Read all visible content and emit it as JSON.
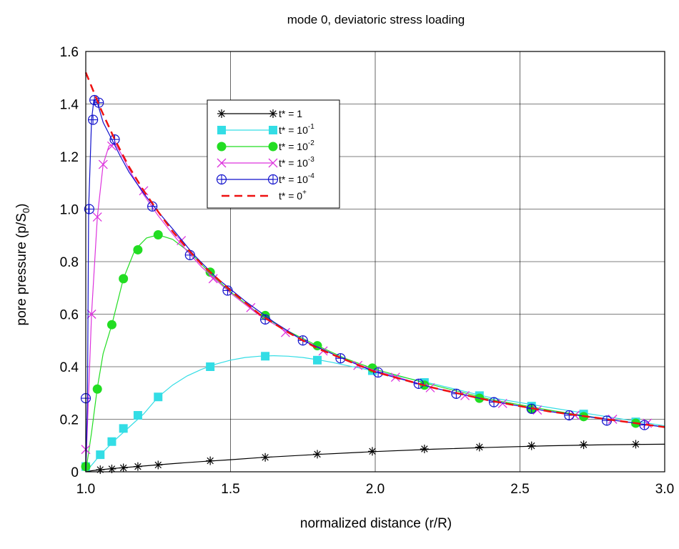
{
  "chart_data": {
    "type": "line",
    "title": "mode 0, deviatoric stress loading",
    "xlabel": "normalized distance (r/R)",
    "ylabel_main": "pore pressure (p/S",
    "ylabel_sub": "0",
    "ylabel_close": ")",
    "xlim": [
      1.0,
      3.0
    ],
    "ylim": [
      0,
      1.6
    ],
    "xticks": [
      {
        "value": 1.0,
        "label": "1.0"
      },
      {
        "value": 1.5,
        "label": "1.5"
      },
      {
        "value": 2.0,
        "label": "2.0"
      },
      {
        "value": 2.5,
        "label": "2.5"
      },
      {
        "value": 3.0,
        "label": "3.0"
      }
    ],
    "yticks": [
      {
        "value": 0,
        "label": "0"
      },
      {
        "value": 0.2,
        "label": "0.2"
      },
      {
        "value": 0.4,
        "label": "0.4"
      },
      {
        "value": 0.6,
        "label": "0.6"
      },
      {
        "value": 0.8,
        "label": "0.8"
      },
      {
        "value": 1.0,
        "label": "1.0"
      },
      {
        "value": 1.2,
        "label": "1.2"
      },
      {
        "value": 1.4,
        "label": "1.4"
      },
      {
        "value": 1.6,
        "label": "1.6"
      }
    ],
    "grid": true,
    "legend_position": "top-left",
    "series": [
      {
        "name": "t* = 1",
        "legend_base": "t* = 1",
        "legend_sup": "",
        "color": "#000000",
        "marker": "asterisk",
        "dashed": false,
        "curve": {
          "x": [
            1.0,
            1.02,
            1.05,
            1.1,
            1.2,
            1.3,
            1.4,
            1.5,
            1.6,
            1.8,
            2.0,
            2.2,
            2.4,
            2.6,
            2.8,
            3.0
          ],
          "y": [
            0.0,
            0.004,
            0.008,
            0.013,
            0.022,
            0.031,
            0.039,
            0.046,
            0.054,
            0.066,
            0.077,
            0.086,
            0.093,
            0.099,
            0.103,
            0.105
          ]
        },
        "markers": {
          "x": [
            1.05,
            1.09,
            1.13,
            1.18,
            1.25,
            1.43,
            1.62,
            1.8,
            1.99,
            2.17,
            2.36,
            2.54,
            2.72,
            2.9
          ],
          "y": [
            0.008,
            0.011,
            0.015,
            0.02,
            0.026,
            0.042,
            0.055,
            0.067,
            0.078,
            0.087,
            0.094,
            0.099,
            0.103,
            0.105
          ]
        }
      },
      {
        "name": "t* = 10^-1",
        "legend_base": "t* = 10",
        "legend_sup": "-1",
        "color": "#33dde5",
        "marker": "square",
        "dashed": false,
        "curve": {
          "x": [
            1.0,
            1.02,
            1.05,
            1.1,
            1.15,
            1.2,
            1.25,
            1.3,
            1.35,
            1.4,
            1.45,
            1.5,
            1.55,
            1.6,
            1.65,
            1.7,
            1.75,
            1.8,
            1.85,
            1.9,
            1.95,
            2.0,
            2.2,
            2.4,
            2.6,
            2.8,
            3.0
          ],
          "y": [
            0.0,
            0.025,
            0.065,
            0.12,
            0.17,
            0.22,
            0.285,
            0.33,
            0.365,
            0.39,
            0.41,
            0.425,
            0.435,
            0.44,
            0.442,
            0.44,
            0.435,
            0.427,
            0.417,
            0.405,
            0.394,
            0.383,
            0.335,
            0.282,
            0.245,
            0.21,
            0.175
          ]
        },
        "markers": {
          "x": [
            1.0,
            1.05,
            1.09,
            1.13,
            1.18,
            1.25,
            1.43,
            1.62,
            1.8,
            1.99,
            2.17,
            2.36,
            2.54,
            2.72,
            2.9
          ],
          "y": [
            0.02,
            0.065,
            0.115,
            0.165,
            0.215,
            0.285,
            0.4,
            0.44,
            0.425,
            0.385,
            0.34,
            0.29,
            0.25,
            0.22,
            0.19
          ]
        }
      },
      {
        "name": "t* = 10^-2",
        "legend_base": "t* = 10",
        "legend_sup": "-2",
        "color": "#22dd22",
        "marker": "circle",
        "dashed": false,
        "curve": {
          "x": [
            1.0,
            1.02,
            1.04,
            1.06,
            1.09,
            1.13,
            1.17,
            1.21,
            1.25,
            1.3,
            1.36,
            1.43,
            1.5,
            1.6,
            1.7,
            1.8,
            1.9,
            2.0,
            2.2,
            2.4,
            2.6,
            2.8,
            3.0
          ],
          "y": [
            0.0,
            0.15,
            0.32,
            0.45,
            0.56,
            0.735,
            0.845,
            0.89,
            0.902,
            0.885,
            0.835,
            0.755,
            0.685,
            0.6,
            0.535,
            0.48,
            0.43,
            0.39,
            0.33,
            0.275,
            0.235,
            0.2,
            0.17
          ]
        },
        "markers": {
          "x": [
            1.0,
            1.04,
            1.09,
            1.13,
            1.18,
            1.25,
            1.43,
            1.62,
            1.8,
            1.99,
            2.17,
            2.36,
            2.54,
            2.72,
            2.9
          ],
          "y": [
            0.02,
            0.315,
            0.56,
            0.735,
            0.845,
            0.902,
            0.76,
            0.595,
            0.48,
            0.395,
            0.33,
            0.28,
            0.24,
            0.21,
            0.185
          ]
        }
      },
      {
        "name": "t* = 10^-3",
        "legend_base": "t* = 10",
        "legend_sup": "-3",
        "color": "#dd33dd",
        "marker": "x",
        "dashed": false,
        "curve": {
          "x": [
            1.0,
            1.01,
            1.02,
            1.04,
            1.06,
            1.08,
            1.1,
            1.12,
            1.16,
            1.2,
            1.25,
            1.3,
            1.35,
            1.4,
            1.5,
            1.6,
            1.7,
            1.8,
            1.9,
            2.0,
            2.2,
            2.4,
            2.6,
            2.8,
            3.0
          ],
          "y": [
            0.0,
            0.3,
            0.6,
            0.97,
            1.17,
            1.24,
            1.25,
            1.215,
            1.13,
            1.055,
            0.975,
            0.905,
            0.84,
            0.78,
            0.68,
            0.595,
            0.53,
            0.475,
            0.425,
            0.385,
            0.32,
            0.27,
            0.23,
            0.2,
            0.17
          ]
        },
        "markers": {
          "x": [
            1.0,
            1.02,
            1.04,
            1.06,
            1.09,
            1.2,
            1.33,
            1.44,
            1.57,
            1.69,
            1.82,
            1.94,
            2.07,
            2.19,
            2.31,
            2.44,
            2.56,
            2.69,
            2.82,
            2.94
          ],
          "y": [
            0.085,
            0.6,
            0.97,
            1.17,
            1.24,
            1.07,
            0.88,
            0.735,
            0.625,
            0.53,
            0.46,
            0.405,
            0.36,
            0.32,
            0.29,
            0.26,
            0.235,
            0.215,
            0.2,
            0.185
          ]
        }
      },
      {
        "name": "t* = 10^-4",
        "legend_base": "t* = 10",
        "legend_sup": "-4",
        "color": "#1111cc",
        "marker": "circle-plus",
        "dashed": false,
        "curve": {
          "x": [
            1.0,
            1.006,
            1.01,
            1.02,
            1.028,
            1.04,
            1.06,
            1.09,
            1.12,
            1.15,
            1.2,
            1.25,
            1.3,
            1.37,
            1.45,
            1.55,
            1.65,
            1.75,
            1.88,
            2.0,
            2.2,
            2.4,
            2.6,
            2.8,
            3.0
          ],
          "y": [
            0.0,
            0.28,
            1.0,
            1.34,
            1.415,
            1.405,
            1.33,
            1.265,
            1.2,
            1.14,
            1.06,
            0.99,
            0.925,
            0.83,
            0.74,
            0.65,
            0.57,
            0.5,
            0.435,
            0.38,
            0.32,
            0.27,
            0.23,
            0.2,
            0.17
          ]
        },
        "markers": {
          "x": [
            1.0,
            1.012,
            1.025,
            1.03,
            1.045,
            1.1,
            1.23,
            1.36,
            1.49,
            1.62,
            1.75,
            1.88,
            2.01,
            2.15,
            2.28,
            2.41,
            2.54,
            2.67,
            2.8,
            2.93
          ],
          "y": [
            0.28,
            1.0,
            1.34,
            1.415,
            1.405,
            1.265,
            1.01,
            0.825,
            0.69,
            0.58,
            0.5,
            0.432,
            0.378,
            0.335,
            0.297,
            0.265,
            0.24,
            0.215,
            0.195,
            0.178
          ]
        }
      },
      {
        "name": "t* = 0^+",
        "legend_base": "t* = 0",
        "legend_sup": "+",
        "color": "#ee1111",
        "marker": "none",
        "dashed": true,
        "curve": {
          "x": [
            1.0,
            1.05,
            1.1,
            1.15,
            1.2,
            1.25,
            1.3,
            1.35,
            1.4,
            1.5,
            1.6,
            1.7,
            1.8,
            1.9,
            2.0,
            2.2,
            2.4,
            2.6,
            2.8,
            3.0
          ],
          "y": [
            1.52,
            1.385,
            1.265,
            1.16,
            1.07,
            0.99,
            0.915,
            0.85,
            0.79,
            0.69,
            0.6,
            0.53,
            0.47,
            0.425,
            0.38,
            0.32,
            0.27,
            0.23,
            0.2,
            0.17
          ]
        },
        "markers": {
          "x": [],
          "y": []
        }
      }
    ]
  }
}
